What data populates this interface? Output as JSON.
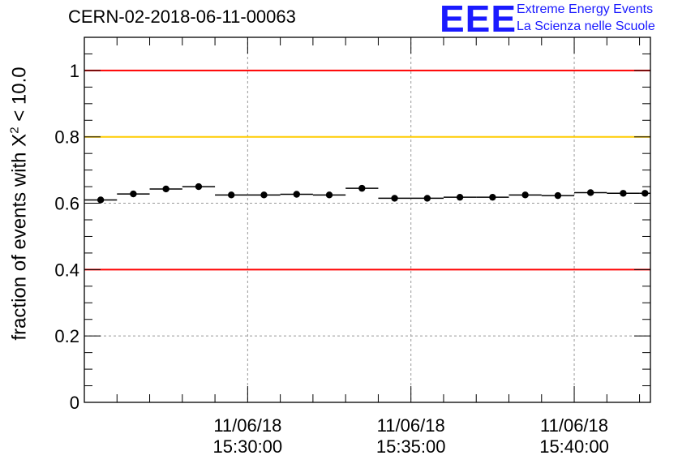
{
  "header": {
    "run_title": "CERN-02-2018-06-11-00063",
    "logo_mark": "EEE",
    "logo_line1": "Extreme Energy Events",
    "logo_line2": "La Scienza nelle Scuole"
  },
  "axis": {
    "ylabel_main": "fraction of events with X",
    "ylabel_sup": "2",
    "ylabel_tail": " < 10.0"
  },
  "chart_data": {
    "type": "scatter",
    "title": "CERN-02-2018-06-11-00063",
    "ylabel": "fraction of events with X^2 < 10.0",
    "ylim": [
      0,
      1.1
    ],
    "yticks": [
      0,
      0.2,
      0.4,
      0.6,
      0.8,
      1
    ],
    "ytick_labels": [
      "0",
      "0.2",
      "0.4",
      "0.6",
      "0.8",
      "1"
    ],
    "x_start": "15:25:00",
    "x_end": "15:42:20",
    "xlim": [
      "15:25:00",
      "15:42:20"
    ],
    "xticks": [
      "15:30:00",
      "15:35:00",
      "15:40:00"
    ],
    "xtick_labels": [
      {
        "date": "11/06/18",
        "time": "15:30:00"
      },
      {
        "date": "11/06/18",
        "time": "15:35:00"
      },
      {
        "date": "11/06/18",
        "time": "15:40:00"
      }
    ],
    "grid": true,
    "reference_lines": [
      {
        "y": 1.0,
        "color": "#ff0000"
      },
      {
        "y": 0.8,
        "color": "#ffcc00"
      },
      {
        "y": 0.4,
        "color": "#ff0000"
      }
    ],
    "bin_edges": [
      "15:25:00",
      "15:26:00",
      "15:27:00",
      "15:28:00",
      "15:29:00",
      "15:30:00",
      "15:31:00",
      "15:32:00",
      "15:33:00",
      "15:34:00",
      "15:35:00",
      "15:36:00",
      "15:37:00",
      "15:38:00",
      "15:39:00",
      "15:40:00",
      "15:41:00",
      "15:42:00",
      "15:42:20"
    ],
    "values": [
      0.61,
      0.628,
      0.643,
      0.65,
      0.625,
      0.625,
      0.627,
      0.625,
      0.645,
      0.615,
      0.615,
      0.618,
      0.618,
      0.625,
      0.623,
      0.632,
      0.63,
      0.63
    ],
    "marker_color": "#000000"
  }
}
